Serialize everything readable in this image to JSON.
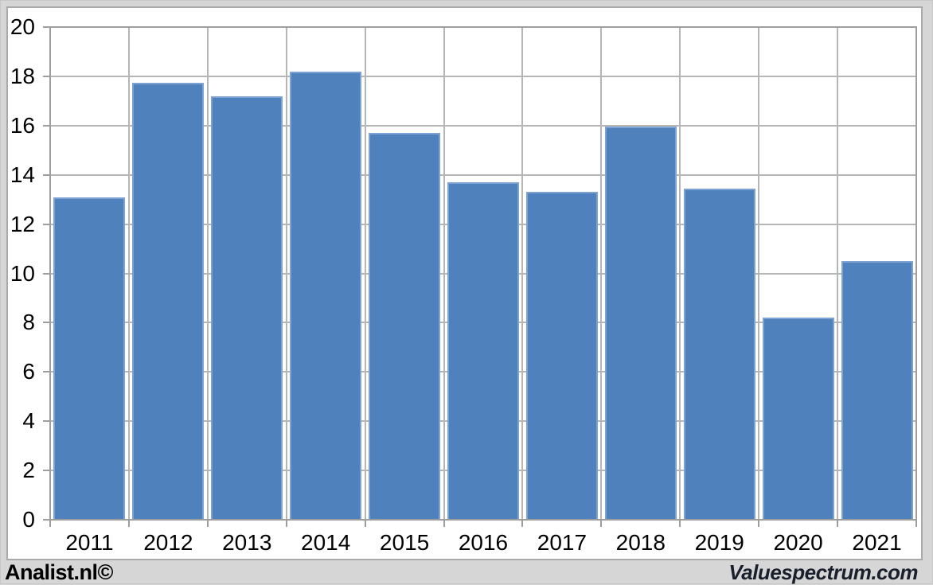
{
  "chart_data": {
    "type": "bar",
    "categories": [
      "2011",
      "2012",
      "2013",
      "2014",
      "2015",
      "2016",
      "2017",
      "2018",
      "2019",
      "2020",
      "2021"
    ],
    "values": [
      13.1,
      17.75,
      17.2,
      18.2,
      15.7,
      13.7,
      13.3,
      15.95,
      13.45,
      8.2,
      10.5
    ],
    "title": "",
    "xlabel": "",
    "ylabel": "",
    "ylim": [
      0,
      20
    ],
    "ytick_step": 2,
    "grid": true,
    "legend": false,
    "bar_color": "#4f81bd",
    "bar_border_color": "#7ea3d2",
    "gridline_color": "#b6b6b6",
    "axis_color": "#9e9e9e",
    "plot_bg": "#ffffff"
  },
  "branding": {
    "left": "Analist.nl©",
    "right": "Valuespectrum.com",
    "right_color": "#191f2b"
  }
}
